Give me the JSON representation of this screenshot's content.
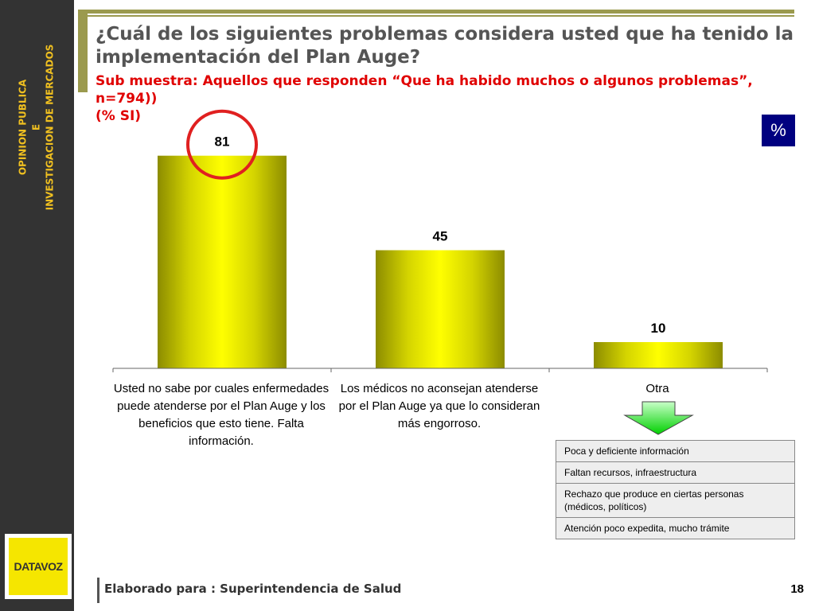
{
  "sidebar": {
    "lines": [
      "OPINION PUBLICA",
      "E",
      "INVESTIGACION DE MERCADOS"
    ],
    "logo_text": "DATAVOZ"
  },
  "header": {
    "title": "¿Cuál de los siguientes problemas considera usted que ha tenido la implementación del Plan Auge?",
    "subtitle": "Sub muestra: Aquellos que responden  “Que ha habido muchos o algunos problemas”, n=794))\n(% SI)"
  },
  "badge": "%",
  "chart_data": {
    "type": "bar",
    "categories": [
      "Usted no sabe por cuales enfermedades puede atenderse por el Plan Auge y los beneficios que esto tiene. Falta información.",
      "Los médicos no aconsejan atenderse por el Plan Auge ya que lo consideran más engorroso.",
      "Otra"
    ],
    "values": [
      81,
      45,
      10
    ],
    "data_labels": [
      "81",
      "45",
      "10"
    ],
    "ylim": [
      0,
      100
    ],
    "grid": false,
    "highlight_index": 0,
    "bar_color": "#e6e600",
    "highlight_color": "#e02020"
  },
  "breakdown": {
    "items": [
      "Poca y deficiente información",
      "Faltan recursos, infraestructura",
      "Rechazo que produce en ciertas personas (médicos, políticos)",
      "Atención poco expedita, mucho trámite"
    ]
  },
  "footer": {
    "text": "Elaborado para : Superintendencia de Salud",
    "page": "18"
  }
}
